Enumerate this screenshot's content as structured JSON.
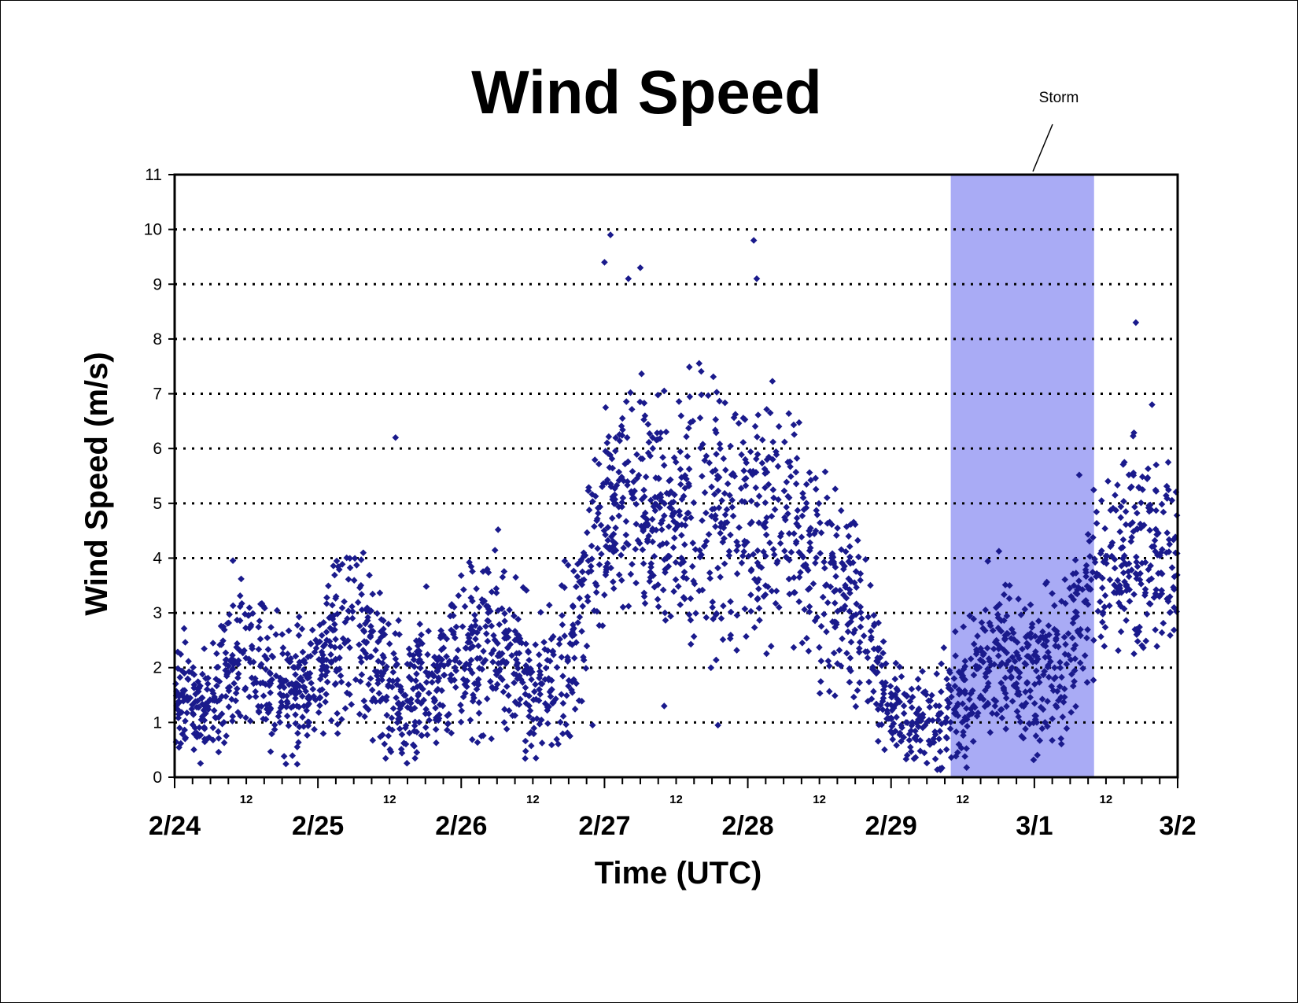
{
  "chart_data": {
    "type": "scatter",
    "title": "Wind Speed",
    "xlabel": "Time (UTC)",
    "ylabel": "Wind Speed (m/s)",
    "ylim": [
      0,
      11
    ],
    "yticks": [
      "0",
      "1",
      "2",
      "3",
      "4",
      "5",
      "6",
      "7",
      "8",
      "9",
      "10",
      "11"
    ],
    "xlim_days": [
      "2/24",
      "3/2"
    ],
    "day_labels": [
      "2/24",
      "2/25",
      "2/26",
      "2/27",
      "2/28",
      "2/29",
      "3/1",
      "3/2"
    ],
    "hour_labels": [
      "12",
      "12",
      "12",
      "12",
      "12",
      "12",
      "12"
    ],
    "grid": "horizontal dotted",
    "marker_color": "#1a1a8c",
    "shade_color": "#a9abf5",
    "annotation": {
      "text": "Storm",
      "start": "2/29 10:00",
      "end": "3/1 10:00"
    },
    "series": [
      {
        "marker": "diamond",
        "envelope_samples": [
          {
            "x": "2/24 00:00",
            "low": 0.8,
            "center": 1.7,
            "high": 2.9
          },
          {
            "x": "2/24 06:00",
            "low": 0.3,
            "center": 1.1,
            "high": 2.6
          },
          {
            "x": "2/24 12:00",
            "low": 1.2,
            "center": 2.6,
            "high": 4.2
          },
          {
            "x": "2/24 18:00",
            "low": 0.4,
            "center": 1.4,
            "high": 3.0
          },
          {
            "x": "2/25 00:00",
            "low": 0.5,
            "center": 1.8,
            "high": 3.0
          },
          {
            "x": "2/25 06:00",
            "low": 1.5,
            "center": 2.9,
            "high": 5.5
          },
          {
            "x": "2/25 12:00",
            "low": 0.5,
            "center": 1.5,
            "high": 3.0
          },
          {
            "x": "2/25 18:00",
            "low": 0.5,
            "center": 1.7,
            "high": 3.0
          },
          {
            "x": "2/26 00:00",
            "low": 0.8,
            "center": 2.1,
            "high": 3.8
          },
          {
            "x": "2/26 06:00",
            "low": 1.0,
            "center": 2.6,
            "high": 4.6
          },
          {
            "x": "2/26 12:00",
            "low": 0.5,
            "center": 1.5,
            "high": 3.0
          },
          {
            "x": "2/26 18:00",
            "low": 0.9,
            "center": 2.2,
            "high": 4.5
          },
          {
            "x": "2/27 00:00",
            "low": 3.0,
            "center": 4.8,
            "high": 7.5
          },
          {
            "x": "2/27 06:00",
            "low": 3.5,
            "center": 5.0,
            "high": 7.5
          },
          {
            "x": "2/27 12:00",
            "low": 3.0,
            "center": 4.6,
            "high": 7.0
          },
          {
            "x": "2/27 18:00",
            "low": 2.2,
            "center": 4.8,
            "high": 7.5
          },
          {
            "x": "2/28 00:00",
            "low": 2.0,
            "center": 4.4,
            "high": 6.5
          },
          {
            "x": "2/28 06:00",
            "low": 2.5,
            "center": 4.6,
            "high": 6.8
          },
          {
            "x": "2/28 12:00",
            "low": 1.8,
            "center": 3.8,
            "high": 6.0
          },
          {
            "x": "2/28 18:00",
            "low": 1.5,
            "center": 3.2,
            "high": 5.2
          },
          {
            "x": "2/29 00:00",
            "low": 0.3,
            "center": 1.2,
            "high": 2.0
          },
          {
            "x": "2/29 06:00",
            "low": 0.3,
            "center": 1.0,
            "high": 2.0
          },
          {
            "x": "2/29 12:00",
            "low": 0.3,
            "center": 1.4,
            "high": 3.0
          },
          {
            "x": "2/29 18:00",
            "low": 1.0,
            "center": 2.4,
            "high": 4.0
          },
          {
            "x": "3/1 00:00",
            "low": 0.6,
            "center": 1.7,
            "high": 3.5
          },
          {
            "x": "3/1 06:00",
            "low": 1.0,
            "center": 2.5,
            "high": 4.5
          },
          {
            "x": "3/1 12:00",
            "low": 2.5,
            "center": 4.2,
            "high": 6.5
          },
          {
            "x": "3/1 18:00",
            "low": 2.5,
            "center": 4.0,
            "high": 6.8
          },
          {
            "x": "3/2 00:00",
            "low": 2.8,
            "center": 4.1,
            "high": 6.0
          }
        ],
        "outliers": [
          {
            "x": "2/25 13:00",
            "y": 6.2
          },
          {
            "x": "2/27 01:00",
            "y": 9.9
          },
          {
            "x": "2/27 00:00",
            "y": 9.4
          },
          {
            "x": "2/27 04:00",
            "y": 9.1
          },
          {
            "x": "2/27 06:00",
            "y": 9.3
          },
          {
            "x": "2/28 01:00",
            "y": 9.8
          },
          {
            "x": "2/28 01:30",
            "y": 9.1
          },
          {
            "x": "3/1 17:00",
            "y": 8.3
          },
          {
            "x": "2/27 10:00",
            "y": 1.3
          },
          {
            "x": "2/27 19:00",
            "y": 0.95
          },
          {
            "x": "2/26 22:00",
            "y": 0.95
          }
        ]
      }
    ]
  }
}
